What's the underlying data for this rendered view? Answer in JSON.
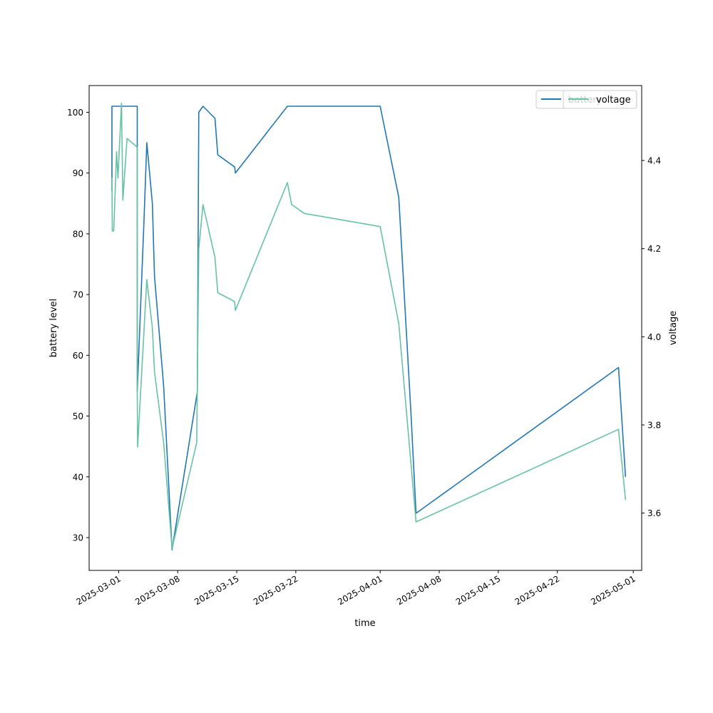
{
  "chart_data": {
    "type": "line",
    "xlabel": "time",
    "ylabel_left": "battery level",
    "ylabel_right": "voltage",
    "xlim": [
      "2025-02-25T12:00",
      "2025-05-02T00:00"
    ],
    "ylim_left": [
      24.6,
      104.4
    ],
    "ylim_right": [
      3.47,
      4.57
    ],
    "x_ticks": [
      "2025-03-01",
      "2025-03-08",
      "2025-03-15",
      "2025-03-22",
      "2025-04-01",
      "2025-04-08",
      "2025-04-15",
      "2025-04-22",
      "2025-05-01"
    ],
    "y_ticks_left": [
      30,
      40,
      50,
      60,
      70,
      80,
      90,
      100
    ],
    "y_ticks_right": [
      "3.6",
      "3.8",
      "4.0",
      "4.2",
      "4.4"
    ],
    "grid": false,
    "legend_left": {
      "label": "battery",
      "color": "#1f77b4",
      "placement": "top-right"
    },
    "legend_right": {
      "label": "voltage",
      "color": "#66c2a5",
      "placement": "top-right"
    },
    "series": [
      {
        "name": "battery",
        "axis": "left",
        "color": "#1f77b4",
        "points": [
          [
            "2025-02-28T05:00",
            87
          ],
          [
            "2025-02-28T05:00",
            101
          ],
          [
            "2025-03-03T05:00",
            101
          ],
          [
            "2025-03-03T05:00",
            54
          ],
          [
            "2025-03-04T00:00",
            82
          ],
          [
            "2025-03-04T08:00",
            95
          ],
          [
            "2025-03-05T00:00",
            85
          ],
          [
            "2025-03-05T06:00",
            73
          ],
          [
            "2025-03-06T08:00",
            55
          ],
          [
            "2025-03-07T08:00",
            28
          ],
          [
            "2025-03-10T08:00",
            54
          ],
          [
            "2025-03-10T12:00",
            100
          ],
          [
            "2025-03-11T00:00",
            101
          ],
          [
            "2025-03-12T10:00",
            99
          ],
          [
            "2025-03-12T18:00",
            93
          ],
          [
            "2025-03-14T18:00",
            91
          ],
          [
            "2025-03-14T20:00",
            90
          ],
          [
            "2025-03-21T00:00",
            101
          ],
          [
            "2025-04-01T00:00",
            101
          ],
          [
            "2025-04-03T05:00",
            86
          ],
          [
            "2025-04-04T16:00",
            50
          ],
          [
            "2025-04-05T06:00",
            34
          ],
          [
            "2025-04-29T06:00",
            58
          ],
          [
            "2025-04-30T02:00",
            40
          ]
        ]
      },
      {
        "name": "voltage",
        "axis": "right",
        "color": "#66c2a5",
        "points": [
          [
            "2025-02-28T05:00",
            4.34
          ],
          [
            "2025-02-28T05:00",
            4.36
          ],
          [
            "2025-02-28T06:00",
            4.24
          ],
          [
            "2025-02-28T10:00",
            4.24
          ],
          [
            "2025-02-28T18:00",
            4.42
          ],
          [
            "2025-02-28T22:00",
            4.36
          ],
          [
            "2025-03-01T08:00",
            4.53
          ],
          [
            "2025-03-01T12:00",
            4.31
          ],
          [
            "2025-03-02T00:00",
            4.45
          ],
          [
            "2025-03-03T05:00",
            4.43
          ],
          [
            "2025-03-03T05:00",
            3.87
          ],
          [
            "2025-03-03T06:00",
            3.75
          ],
          [
            "2025-03-04T08:00",
            4.13
          ],
          [
            "2025-03-05T00:00",
            4.02
          ],
          [
            "2025-03-05T06:00",
            3.92
          ],
          [
            "2025-03-06T08:00",
            3.76
          ],
          [
            "2025-03-07T08:00",
            3.52
          ],
          [
            "2025-03-10T06:00",
            3.76
          ],
          [
            "2025-03-10T12:00",
            4.2
          ],
          [
            "2025-03-11T00:00",
            4.3
          ],
          [
            "2025-03-12T10:00",
            4.18
          ],
          [
            "2025-03-12T18:00",
            4.1
          ],
          [
            "2025-03-14T18:00",
            4.08
          ],
          [
            "2025-03-14T20:00",
            4.06
          ],
          [
            "2025-03-21T00:00",
            4.35
          ],
          [
            "2025-03-21T12:00",
            4.3
          ],
          [
            "2025-03-23T00:00",
            4.28
          ],
          [
            "2025-04-01T00:00",
            4.25
          ],
          [
            "2025-04-03T05:00",
            4.03
          ],
          [
            "2025-04-05T06:00",
            3.58
          ],
          [
            "2025-04-29T06:00",
            3.79
          ],
          [
            "2025-04-30T02:00",
            3.63
          ]
        ]
      }
    ]
  }
}
